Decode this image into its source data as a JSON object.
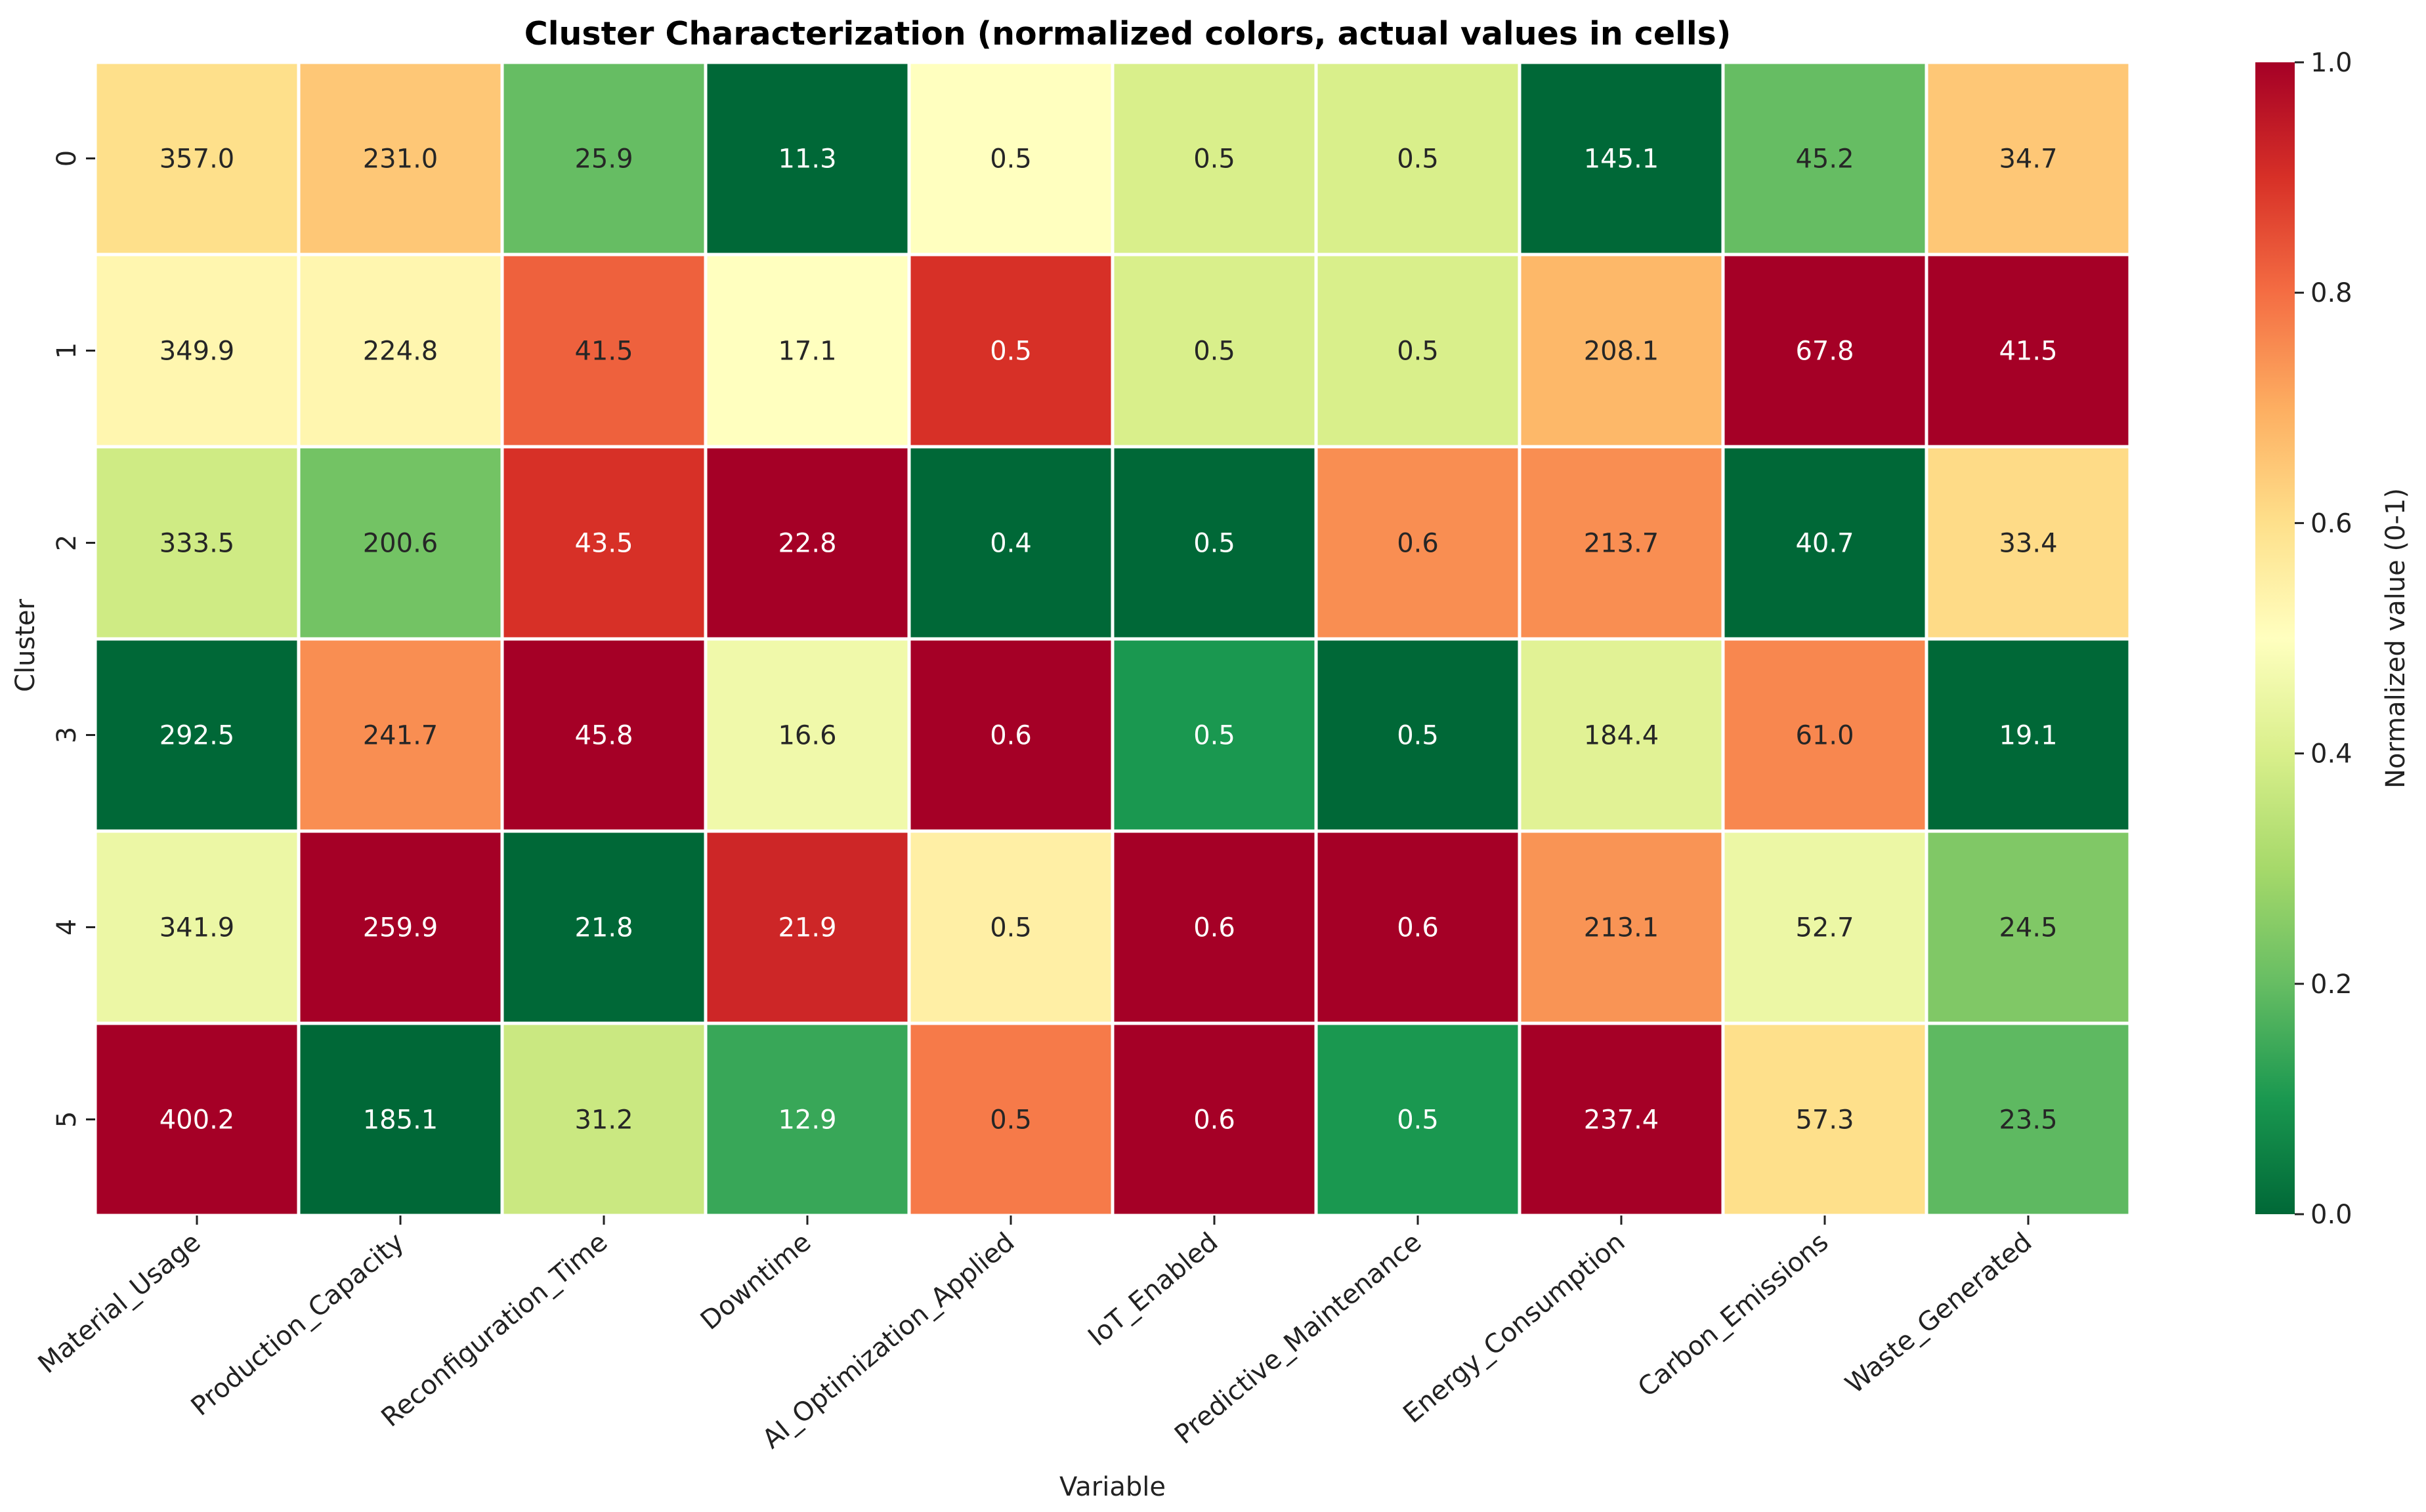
{
  "chart_data": {
    "type": "heatmap",
    "title": "Cluster Characterization (normalized colors, actual values in cells)",
    "xlabel": "Variable",
    "ylabel": "Cluster",
    "colorbar_label": "Normalized value (0-1)",
    "colormap": "RdYlGn_r",
    "colorbar_range": [
      0,
      1
    ],
    "colorbar_ticks": [
      "0.0",
      "0.2",
      "0.4",
      "0.6",
      "0.8",
      "1.0"
    ],
    "categories": [
      "Material_Usage",
      "Production_Capacity",
      "Reconfiguration_Time",
      "Downtime",
      "AI_Optimization_Applied",
      "IoT_Enabled",
      "Predictive_Maintenance",
      "Energy_Consumption",
      "Carbon_Emissions",
      "Waste_Generated"
    ],
    "rows": [
      "0",
      "1",
      "2",
      "3",
      "4",
      "5"
    ],
    "values": [
      [
        "357.0",
        "231.0",
        "25.9",
        "11.3",
        "0.5",
        "0.5",
        "0.5",
        "145.1",
        "45.2",
        "34.7"
      ],
      [
        "349.9",
        "224.8",
        "41.5",
        "17.1",
        "0.5",
        "0.5",
        "0.5",
        "208.1",
        "67.8",
        "41.5"
      ],
      [
        "333.5",
        "200.6",
        "43.5",
        "22.8",
        "0.4",
        "0.5",
        "0.6",
        "213.7",
        "40.7",
        "33.4"
      ],
      [
        "292.5",
        "241.7",
        "45.8",
        "16.6",
        "0.6",
        "0.5",
        "0.5",
        "184.4",
        "61.0",
        "19.1"
      ],
      [
        "341.9",
        "259.9",
        "21.8",
        "21.9",
        "0.5",
        "0.6",
        "0.6",
        "213.1",
        "52.7",
        "24.5"
      ],
      [
        "400.2",
        "185.1",
        "31.2",
        "12.9",
        "0.5",
        "0.6",
        "0.5",
        "237.4",
        "57.3",
        "23.5"
      ]
    ],
    "normalized": [
      [
        0.6,
        0.65,
        0.2,
        0.0,
        0.5,
        0.4,
        0.4,
        0.0,
        0.2,
        0.65
      ],
      [
        0.53,
        0.53,
        0.82,
        0.5,
        0.9,
        0.4,
        0.4,
        0.68,
        1.0,
        1.0
      ],
      [
        0.38,
        0.22,
        0.9,
        1.0,
        0.0,
        0.0,
        0.75,
        0.75,
        0.0,
        0.61
      ],
      [
        0.0,
        0.75,
        1.0,
        0.46,
        1.0,
        0.1,
        0.0,
        0.42,
        0.76,
        0.0
      ],
      [
        0.45,
        1.0,
        0.0,
        0.92,
        0.55,
        1.0,
        1.0,
        0.74,
        0.45,
        0.24
      ],
      [
        1.0,
        0.0,
        0.37,
        0.14,
        0.78,
        1.0,
        0.1,
        1.0,
        0.6,
        0.19
      ]
    ]
  }
}
